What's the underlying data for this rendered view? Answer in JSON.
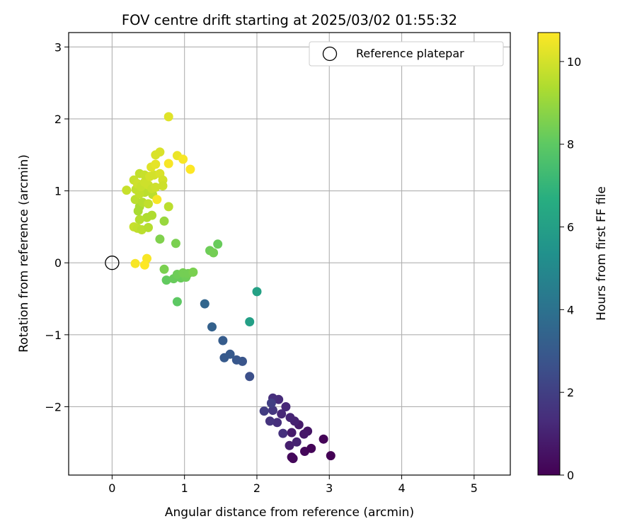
{
  "chart_data": {
    "type": "scatter",
    "title": "FOV centre drift starting at 2025/03/02 01:55:32",
    "xlabel": "Angular distance from reference (arcmin)",
    "ylabel": "Rotation from reference (arcmin)",
    "xlim": [
      -0.6,
      5.5
    ],
    "ylim": [
      -2.95,
      3.2
    ],
    "xticks": [
      0,
      1,
      2,
      3,
      4,
      5
    ],
    "yticks": [
      -2,
      -1,
      0,
      1,
      2,
      3
    ],
    "grid": true,
    "legend": {
      "position": "top-right",
      "entries": [
        "Reference platepar"
      ]
    },
    "reference_point": {
      "x": 0.0,
      "y": 0.0
    },
    "colorbar": {
      "label": "Hours from first FF file",
      "colormap": "viridis",
      "min": 0,
      "max": 10.7,
      "ticks": [
        0,
        2,
        4,
        6,
        8,
        10
      ]
    },
    "points": [
      {
        "x": 2.48,
        "y": -2.7,
        "h": 0.2
      },
      {
        "x": 2.5,
        "y": -2.72,
        "h": 0.2
      },
      {
        "x": 2.66,
        "y": -2.62,
        "h": 0.2
      },
      {
        "x": 2.75,
        "y": -2.58,
        "h": 0.1
      },
      {
        "x": 3.02,
        "y": -2.68,
        "h": 0.0
      },
      {
        "x": 2.92,
        "y": -2.45,
        "h": 0.1
      },
      {
        "x": 2.7,
        "y": -2.34,
        "h": 0.6
      },
      {
        "x": 2.65,
        "y": -2.38,
        "h": 0.7
      },
      {
        "x": 2.58,
        "y": -2.25,
        "h": 0.8
      },
      {
        "x": 2.48,
        "y": -2.36,
        "h": 0.8
      },
      {
        "x": 2.45,
        "y": -2.54,
        "h": 0.9
      },
      {
        "x": 2.55,
        "y": -2.49,
        "h": 1.0
      },
      {
        "x": 2.52,
        "y": -2.2,
        "h": 1.0
      },
      {
        "x": 2.46,
        "y": -2.15,
        "h": 1.1
      },
      {
        "x": 2.4,
        "y": -2.0,
        "h": 1.2
      },
      {
        "x": 2.34,
        "y": -2.1,
        "h": 1.2
      },
      {
        "x": 2.3,
        "y": -1.9,
        "h": 1.3
      },
      {
        "x": 2.22,
        "y": -1.88,
        "h": 1.4
      },
      {
        "x": 2.28,
        "y": -2.22,
        "h": 1.4
      },
      {
        "x": 2.36,
        "y": -2.37,
        "h": 1.5
      },
      {
        "x": 2.18,
        "y": -2.2,
        "h": 1.6
      },
      {
        "x": 2.22,
        "y": -2.05,
        "h": 1.7
      },
      {
        "x": 2.1,
        "y": -2.06,
        "h": 1.9
      },
      {
        "x": 2.2,
        "y": -1.95,
        "h": 2.0
      },
      {
        "x": 1.9,
        "y": -1.58,
        "h": 2.6
      },
      {
        "x": 1.8,
        "y": -1.37,
        "h": 2.8
      },
      {
        "x": 1.72,
        "y": -1.35,
        "h": 2.9
      },
      {
        "x": 1.63,
        "y": -1.27,
        "h": 3.0
      },
      {
        "x": 1.55,
        "y": -1.32,
        "h": 3.0
      },
      {
        "x": 1.53,
        "y": -1.08,
        "h": 3.1
      },
      {
        "x": 1.38,
        "y": -0.89,
        "h": 3.3
      },
      {
        "x": 1.28,
        "y": -0.57,
        "h": 3.5
      },
      {
        "x": 1.9,
        "y": -0.82,
        "h": 6.0
      },
      {
        "x": 2.0,
        "y": -0.4,
        "h": 6.1
      },
      {
        "x": 0.9,
        "y": -0.54,
        "h": 8.0
      },
      {
        "x": 0.75,
        "y": -0.24,
        "h": 8.1
      },
      {
        "x": 0.85,
        "y": -0.22,
        "h": 8.2
      },
      {
        "x": 0.95,
        "y": -0.21,
        "h": 8.2
      },
      {
        "x": 1.02,
        "y": -0.2,
        "h": 8.3
      },
      {
        "x": 0.9,
        "y": -0.16,
        "h": 8.3
      },
      {
        "x": 0.98,
        "y": -0.14,
        "h": 8.4
      },
      {
        "x": 1.05,
        "y": -0.15,
        "h": 8.4
      },
      {
        "x": 1.12,
        "y": -0.13,
        "h": 8.5
      },
      {
        "x": 0.72,
        "y": -0.09,
        "h": 8.5
      },
      {
        "x": 1.35,
        "y": 0.17,
        "h": 8.3
      },
      {
        "x": 1.4,
        "y": 0.14,
        "h": 8.4
      },
      {
        "x": 1.46,
        "y": 0.26,
        "h": 8.2
      },
      {
        "x": 0.88,
        "y": 0.27,
        "h": 8.5
      },
      {
        "x": 0.66,
        "y": 0.33,
        "h": 8.6
      },
      {
        "x": 0.72,
        "y": 0.58,
        "h": 9.0
      },
      {
        "x": 0.3,
        "y": 0.5,
        "h": 9.8
      },
      {
        "x": 0.35,
        "y": 0.48,
        "h": 9.7
      },
      {
        "x": 0.41,
        "y": 0.46,
        "h": 9.6
      },
      {
        "x": 0.5,
        "y": 0.49,
        "h": 9.5
      },
      {
        "x": 0.48,
        "y": 0.63,
        "h": 9.4
      },
      {
        "x": 0.55,
        "y": 0.66,
        "h": 9.4
      },
      {
        "x": 0.38,
        "y": 0.6,
        "h": 9.5
      },
      {
        "x": 0.36,
        "y": 0.72,
        "h": 9.3
      },
      {
        "x": 0.38,
        "y": 0.78,
        "h": 9.3
      },
      {
        "x": 0.32,
        "y": 0.88,
        "h": 9.6
      },
      {
        "x": 0.42,
        "y": 0.84,
        "h": 9.5
      },
      {
        "x": 0.5,
        "y": 0.82,
        "h": 9.7
      },
      {
        "x": 0.56,
        "y": 0.95,
        "h": 9.6
      },
      {
        "x": 0.45,
        "y": 0.98,
        "h": 9.6
      },
      {
        "x": 0.38,
        "y": 0.96,
        "h": 9.7
      },
      {
        "x": 0.33,
        "y": 1.02,
        "h": 9.7
      },
      {
        "x": 0.2,
        "y": 1.01,
        "h": 9.8
      },
      {
        "x": 0.3,
        "y": 1.15,
        "h": 9.8
      },
      {
        "x": 0.35,
        "y": 1.1,
        "h": 9.9
      },
      {
        "x": 0.4,
        "y": 1.06,
        "h": 9.8
      },
      {
        "x": 0.45,
        "y": 1.12,
        "h": 9.9
      },
      {
        "x": 0.5,
        "y": 1.08,
        "h": 9.9
      },
      {
        "x": 0.55,
        "y": 1.03,
        "h": 9.8
      },
      {
        "x": 0.6,
        "y": 1.05,
        "h": 9.9
      },
      {
        "x": 0.38,
        "y": 1.24,
        "h": 9.7
      },
      {
        "x": 0.45,
        "y": 1.22,
        "h": 9.8
      },
      {
        "x": 0.52,
        "y": 1.2,
        "h": 10.0
      },
      {
        "x": 0.58,
        "y": 1.22,
        "h": 10.0
      },
      {
        "x": 0.66,
        "y": 1.24,
        "h": 10.1
      },
      {
        "x": 0.7,
        "y": 1.15,
        "h": 10.0
      },
      {
        "x": 0.7,
        "y": 1.07,
        "h": 9.9
      },
      {
        "x": 0.54,
        "y": 1.33,
        "h": 10.2
      },
      {
        "x": 0.6,
        "y": 1.37,
        "h": 10.3
      },
      {
        "x": 0.6,
        "y": 1.5,
        "h": 10.1
      },
      {
        "x": 0.66,
        "y": 1.54,
        "h": 10.1
      },
      {
        "x": 0.78,
        "y": 1.38,
        "h": 10.6
      },
      {
        "x": 0.9,
        "y": 1.49,
        "h": 10.4
      },
      {
        "x": 0.98,
        "y": 1.44,
        "h": 10.6
      },
      {
        "x": 1.08,
        "y": 1.3,
        "h": 10.7
      },
      {
        "x": 0.78,
        "y": 2.03,
        "h": 10.2
      },
      {
        "x": 0.62,
        "y": 0.88,
        "h": 10.6
      },
      {
        "x": 0.78,
        "y": 0.78,
        "h": 9.6
      },
      {
        "x": 0.48,
        "y": 0.06,
        "h": 10.6
      },
      {
        "x": 0.32,
        "y": -0.01,
        "h": 10.6
      },
      {
        "x": 0.45,
        "y": -0.03,
        "h": 10.7
      }
    ]
  }
}
